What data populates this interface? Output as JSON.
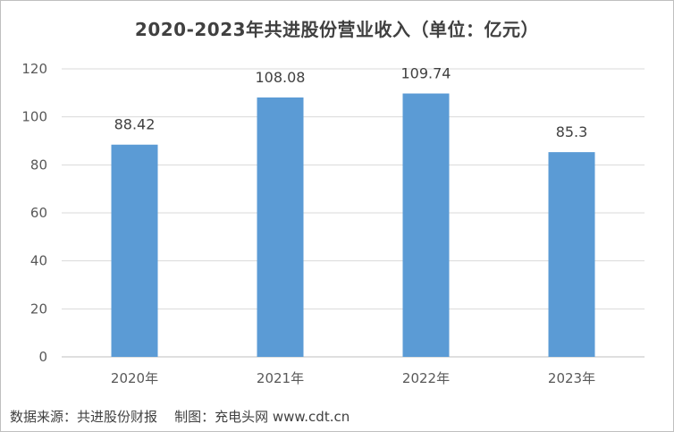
{
  "chart_data": {
    "type": "bar",
    "title": "2020-2023年共进股份营业收入（单位：亿元）",
    "categories": [
      "2020年",
      "2021年",
      "2022年",
      "2023年"
    ],
    "values": [
      88.42,
      108.08,
      109.74,
      85.3
    ],
    "data_labels": [
      "88.42",
      "108.08",
      "109.74",
      "85.3"
    ],
    "ylim": [
      0,
      120
    ],
    "yticks": [
      0,
      20,
      40,
      60,
      80,
      100,
      120
    ],
    "grid": true,
    "legend": "none",
    "bar_color": "#5b9bd5",
    "grid_color": "#d9d9d9"
  },
  "footer": {
    "source": "数据来源：共进股份财报",
    "credit": "制图：充电头网 www.cdt.cn"
  }
}
